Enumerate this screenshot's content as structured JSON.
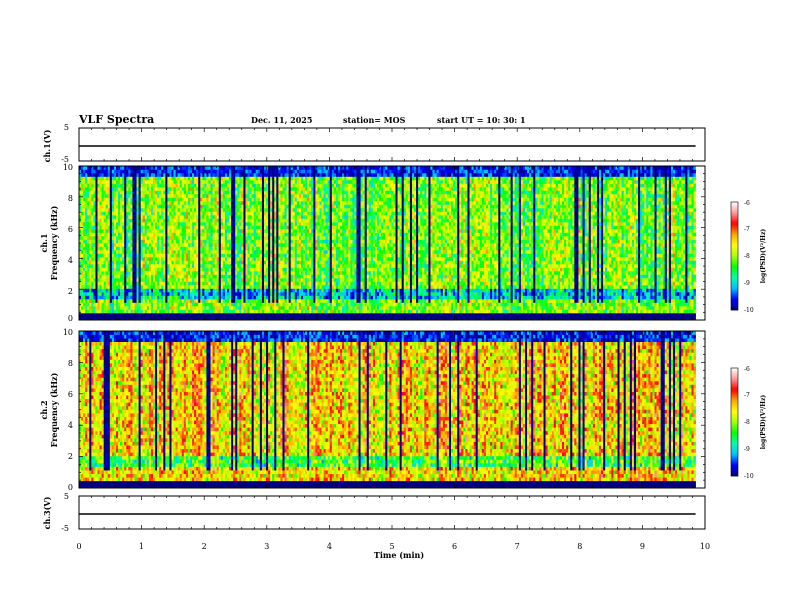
{
  "header": {
    "title": "VLF Spectra",
    "date": "Dec. 11, 2025",
    "station": "station= MOS",
    "start": "start  UT  =   10: 30: 1"
  },
  "colors": {
    "background": "#ffffff",
    "axis": "#000000",
    "colormap": [
      "#00007f",
      "#0000ff",
      "#00bfff",
      "#00ffaa",
      "#00ff00",
      "#aaff00",
      "#ffff00",
      "#ffa500",
      "#ff0000",
      "#ff9999",
      "#ffffff"
    ]
  },
  "chart_data": [
    {
      "type": "line",
      "name": "ch1-voltage",
      "ylabel": "ch.1(V)",
      "ylim": [
        -5,
        5
      ],
      "yticks": [
        "5",
        "-5"
      ],
      "xlim": [
        0,
        10
      ],
      "x": [
        0,
        9.85
      ],
      "y": [
        0,
        0
      ]
    },
    {
      "type": "heatmap",
      "name": "ch1-spectrogram",
      "ylabel_line1": "ch.1",
      "ylabel_line2": "Frequency  (kHz)",
      "ylim": [
        0,
        10
      ],
      "yticks": [
        "0",
        "2",
        "4",
        "6",
        "8",
        "10"
      ],
      "xlim": [
        0,
        10
      ],
      "data_end_min": 9.85,
      "colorbar": {
        "label": "log(PSD)(V²/Hz)",
        "range": [
          -10,
          -6
        ],
        "ticks": [
          "-6",
          "-7",
          "-8",
          "-9",
          "-10"
        ]
      },
      "band_kHz": [
        0.4,
        9.2
      ],
      "noise_floor_kHz": [
        0.0,
        0.3
      ],
      "typical_level": -8.3
    },
    {
      "type": "heatmap",
      "name": "ch2-spectrogram",
      "ylabel_line1": "ch.2",
      "ylabel_line2": "Frequency  (kHz)",
      "ylim": [
        0,
        10
      ],
      "yticks": [
        "0",
        "2",
        "4",
        "6",
        "8",
        "10"
      ],
      "xlim": [
        0,
        10
      ],
      "data_end_min": 9.85,
      "colorbar": {
        "label": "log(PSD)(V²/Hz)",
        "range": [
          -10,
          -6
        ],
        "ticks": [
          "-6",
          "-7",
          "-8",
          "-9",
          "-10"
        ]
      },
      "band_kHz": [
        0.4,
        9.2
      ],
      "noise_floor_kHz": [
        0.0,
        0.3
      ],
      "typical_level": -7.6
    },
    {
      "type": "line",
      "name": "ch3-voltage",
      "ylabel": "ch.3(V)",
      "ylim": [
        -5,
        5
      ],
      "yticks": [
        "5",
        "-5"
      ],
      "xlim": [
        0,
        10
      ],
      "x": [
        0,
        9.85
      ],
      "y": [
        0,
        0
      ]
    }
  ],
  "xaxis": {
    "label": "Time  (min)",
    "ticks": [
      "0",
      "1",
      "2",
      "3",
      "4",
      "5",
      "6",
      "7",
      "8",
      "9",
      "10"
    ]
  }
}
